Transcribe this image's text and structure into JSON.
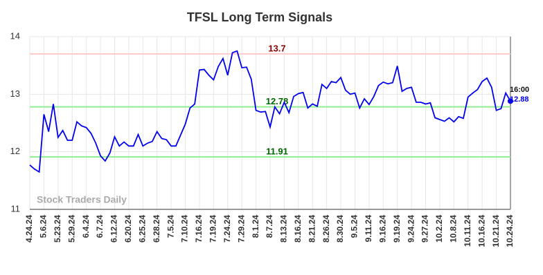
{
  "chart_data": {
    "type": "line",
    "title": "TFSL Long Term Signals",
    "watermark": "Stock Traders Daily",
    "categories": [
      "4.24.24",
      null,
      null,
      "5.6.24",
      null,
      null,
      "5.23.24",
      null,
      null,
      "5.29.24",
      null,
      null,
      "6.4.24",
      null,
      null,
      "6.7.24",
      null,
      null,
      "6.12.24",
      null,
      null,
      "6.20.24",
      null,
      null,
      "6.25.24",
      null,
      null,
      "6.28.24",
      null,
      null,
      "7.5.24",
      null,
      null,
      "7.10.24",
      null,
      null,
      "7.16.24",
      null,
      null,
      "7.19.24",
      null,
      null,
      "7.24.24",
      null,
      null,
      "7.29.24",
      null,
      null,
      "8.1.24",
      null,
      null,
      "8.7.24",
      null,
      null,
      "8.13.24",
      null,
      null,
      "8.16.24",
      null,
      null,
      "8.21.24",
      null,
      null,
      "8.26.24",
      null,
      null,
      "8.30.24",
      null,
      null,
      "9.5.24",
      null,
      null,
      "9.11.24",
      null,
      null,
      "9.16.24",
      null,
      null,
      "9.19.24",
      null,
      null,
      "9.24.24",
      null,
      null,
      "9.27.24",
      null,
      null,
      "10.2.24",
      null,
      null,
      "10.8.24",
      null,
      null,
      "10.11.24",
      null,
      null,
      "10.16.24",
      null,
      null,
      "10.21.24",
      null,
      null,
      "10.24.24"
    ],
    "series": [
      {
        "name": "TFSL",
        "color": "#0000ee",
        "values": [
          11.77,
          11.7,
          11.65,
          12.65,
          12.35,
          12.83,
          12.25,
          12.37,
          12.2,
          12.2,
          12.52,
          12.45,
          12.42,
          12.32,
          12.15,
          11.93,
          11.84,
          11.98,
          12.26,
          12.1,
          12.17,
          12.1,
          12.1,
          12.3,
          12.1,
          12.15,
          12.18,
          12.35,
          12.23,
          12.21,
          12.1,
          12.1,
          12.29,
          12.48,
          12.76,
          12.83,
          13.42,
          13.43,
          13.33,
          13.25,
          13.48,
          13.62,
          13.33,
          13.72,
          13.75,
          13.46,
          13.47,
          13.26,
          12.72,
          12.69,
          12.7,
          12.43,
          12.78,
          12.66,
          12.86,
          12.68,
          12.96,
          13.01,
          13.03,
          12.76,
          12.83,
          12.79,
          13.17,
          13.1,
          13.22,
          13.2,
          13.29,
          13.07,
          13.0,
          13.02,
          12.76,
          12.92,
          12.82,
          12.96,
          13.15,
          13.21,
          13.18,
          13.2,
          13.49,
          13.05,
          13.1,
          13.12,
          12.86,
          12.86,
          12.83,
          12.85,
          12.59,
          12.56,
          12.53,
          12.59,
          12.52,
          12.61,
          12.58,
          12.95,
          13.02,
          13.08,
          13.22,
          13.28,
          13.12,
          12.72,
          12.75,
          13.02,
          12.88
        ]
      }
    ],
    "hlines": [
      {
        "value": 13.7,
        "color": "#ffcccc",
        "label_color": "#8b0000"
      },
      {
        "value": 12.78,
        "color": "#90ee90",
        "label_color": "#006400"
      },
      {
        "value": 11.91,
        "color": "#90ee90",
        "label_color": "#006400"
      }
    ],
    "last_point": {
      "time": "16:00",
      "value": 12.88
    },
    "ylim": [
      11,
      14
    ],
    "yticks": [
      11,
      12,
      13,
      14
    ],
    "grid": true
  }
}
